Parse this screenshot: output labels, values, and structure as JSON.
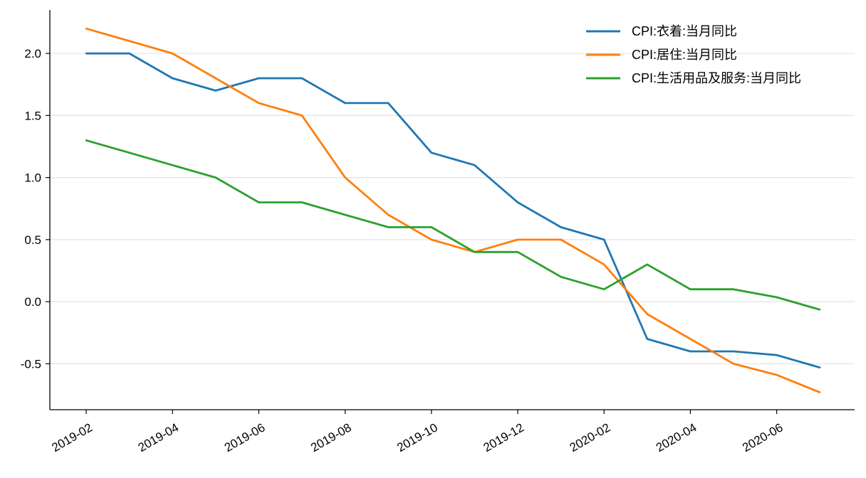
{
  "chart_data": {
    "type": "line",
    "x": [
      "2019-02",
      "2019-03",
      "2019-04",
      "2019-05",
      "2019-06",
      "2019-07",
      "2019-08",
      "2019-09",
      "2019-10",
      "2019-11",
      "2019-12",
      "2020-01",
      "2020-02",
      "2020-03",
      "2020-04",
      "2020-05",
      "2020-06",
      "2020-07"
    ],
    "xtick_labels": [
      "2019-02",
      "2019-04",
      "2019-06",
      "2019-08",
      "2019-10",
      "2019-12",
      "2020-02",
      "2020-04",
      "2020-06"
    ],
    "ytick_labels": [
      "-0.5",
      "0.0",
      "0.5",
      "1.0",
      "1.5",
      "2.0"
    ],
    "yticks": [
      -0.5,
      0.0,
      0.5,
      1.0,
      1.5,
      2.0
    ],
    "ylim": [
      -0.87,
      2.35
    ],
    "grid": "horizontal",
    "legend_position": "top-right",
    "series": [
      {
        "name": "CPI:衣着:当月同比",
        "color": "#1f77b4",
        "values": [
          2.0,
          2.0,
          1.8,
          1.7,
          1.8,
          1.8,
          1.6,
          1.6,
          1.2,
          1.1,
          0.8,
          0.6,
          0.5,
          -0.3,
          -0.4,
          -0.4,
          -0.43,
          -0.53
        ]
      },
      {
        "name": "CPI:居住:当月同比",
        "color": "#ff7f0e",
        "values": [
          2.2,
          2.1,
          2.0,
          1.8,
          1.6,
          1.5,
          1.0,
          0.7,
          0.5,
          0.4,
          0.5,
          0.5,
          0.3,
          -0.1,
          -0.3,
          -0.5,
          -0.59,
          -0.73
        ]
      },
      {
        "name": "CPI:生活用品及服务:当月同比",
        "color": "#2ca02c",
        "values": [
          1.3,
          1.2,
          1.1,
          1.0,
          0.8,
          0.8,
          0.7,
          0.6,
          0.6,
          0.4,
          0.4,
          0.2,
          0.1,
          0.3,
          0.1,
          0.1,
          0.036,
          -0.064
        ]
      }
    ]
  }
}
